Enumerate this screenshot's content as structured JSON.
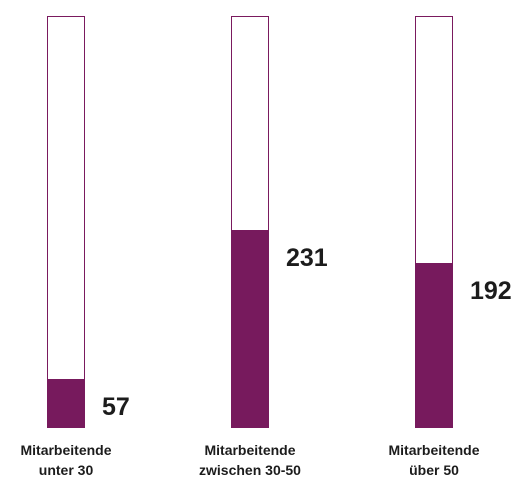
{
  "chart_data": {
    "type": "bar",
    "categories": [
      [
        "Mitarbeitende",
        "unter 30"
      ],
      [
        "Mitarbeitende",
        "zwischen 30-50"
      ],
      [
        "Mitarbeitende",
        "über 50"
      ]
    ],
    "values": [
      57,
      231,
      192
    ],
    "data_labels": [
      "57",
      "231",
      "192"
    ],
    "ylim": [
      0,
      480
    ],
    "bar_color": "#771a5d",
    "grid": false,
    "legend": "none"
  }
}
